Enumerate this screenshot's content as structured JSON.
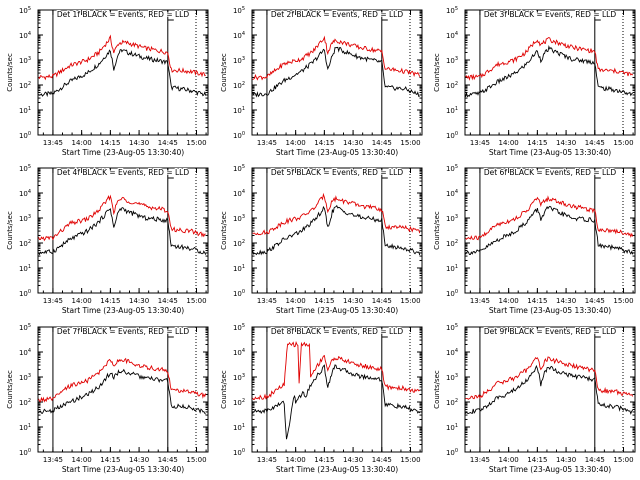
{
  "colors": {
    "events": "#000000",
    "lld": "#e00000",
    "axes": "#000000",
    "background": "#ffffff"
  },
  "chart_data": [
    {
      "type": "line",
      "title": "Det 1f BLACK = Events, RED = LLD",
      "xlabel": "Start Time (23-Aug-05 13:30:40)",
      "ylabel": "Counts/sec",
      "ylog": true,
      "ylim": [
        1,
        100000
      ],
      "yticks": [
        "10^0",
        "10^1",
        "10^2",
        "10^3",
        "10^4",
        "10^5"
      ],
      "xticks": [
        "13:45",
        "14:00",
        "14:15",
        "14:30",
        "14:45",
        "15:00"
      ],
      "xlim": [
        13.62,
        15.1
      ],
      "markers": [
        13.75,
        14.75
      ],
      "series": [
        {
          "name": "Events",
          "x": [
            13.6,
            13.75,
            13.9,
            14.05,
            14.15,
            14.25,
            14.28,
            14.32,
            14.35,
            14.4,
            14.55,
            14.75,
            14.78,
            14.95,
            15.08
          ],
          "values": [
            40,
            45,
            140,
            300,
            700,
            2500,
            450,
            1800,
            2500,
            2000,
            1200,
            800,
            80,
            60,
            40
          ]
        },
        {
          "name": "LLD",
          "x": [
            13.6,
            13.75,
            13.9,
            14.05,
            14.15,
            14.25,
            14.28,
            14.32,
            14.35,
            14.4,
            14.55,
            14.75,
            14.78,
            14.95,
            15.08
          ],
          "values": [
            200,
            220,
            600,
            1000,
            2000,
            7500,
            2000,
            4500,
            5000,
            4800,
            3000,
            2000,
            400,
            350,
            250
          ]
        }
      ]
    },
    {
      "type": "line",
      "title": "Det 2f BLACK = Events, RED = LLD",
      "xlabel": "Start Time (23-Aug-05 13:30:40)",
      "ylabel": "Counts/sec",
      "ylog": true,
      "ylim": [
        1,
        100000
      ],
      "yticks": [
        "10^0",
        "10^1",
        "10^2",
        "10^3",
        "10^4",
        "10^5"
      ],
      "xticks": [
        "13:45",
        "14:00",
        "14:15",
        "14:30",
        "14:45",
        "15:00"
      ],
      "xlim": [
        13.62,
        15.1
      ],
      "markers": [
        13.75,
        14.75
      ],
      "series": [
        {
          "name": "Events",
          "x": [
            13.6,
            13.75,
            13.9,
            14.05,
            14.15,
            14.25,
            14.28,
            14.32,
            14.35,
            14.4,
            14.55,
            14.75,
            14.78,
            14.95,
            15.08
          ],
          "values": [
            40,
            45,
            150,
            350,
            800,
            2600,
            400,
            1500,
            3200,
            2400,
            1300,
            800,
            80,
            70,
            40
          ]
        },
        {
          "name": "LLD",
          "x": [
            13.6,
            13.75,
            13.9,
            14.05,
            14.15,
            14.25,
            14.28,
            14.32,
            14.35,
            14.4,
            14.55,
            14.75,
            14.78,
            14.95,
            15.08
          ],
          "values": [
            200,
            210,
            700,
            1100,
            2200,
            8000,
            2000,
            5000,
            6000,
            5200,
            3200,
            2200,
            450,
            350,
            250
          ]
        }
      ]
    },
    {
      "type": "line",
      "title": "Det 3f BLACK = Events, RED = LLD",
      "xlabel": "Start Time (23-Aug-05 13:30:40)",
      "ylabel": "Counts/sec",
      "ylog": true,
      "ylim": [
        1,
        100000
      ],
      "yticks": [
        "10^0",
        "10^1",
        "10^2",
        "10^3",
        "10^4",
        "10^5"
      ],
      "xticks": [
        "13:45",
        "14:00",
        "14:15",
        "14:30",
        "14:45",
        "15:00"
      ],
      "xlim": [
        13.62,
        15.1
      ],
      "markers": [
        13.75,
        14.75
      ],
      "series": [
        {
          "name": "Events",
          "x": [
            13.6,
            13.75,
            13.9,
            14.05,
            14.15,
            14.25,
            14.28,
            14.32,
            14.35,
            14.4,
            14.55,
            14.75,
            14.78,
            14.95,
            15.08
          ],
          "values": [
            40,
            45,
            130,
            280,
            650,
            2300,
            1000,
            2000,
            2800,
            2200,
            1100,
            800,
            80,
            60,
            40
          ]
        },
        {
          "name": "LLD",
          "x": [
            13.6,
            13.75,
            13.9,
            14.05,
            14.15,
            14.25,
            14.28,
            14.32,
            14.35,
            14.4,
            14.55,
            14.75,
            14.78,
            14.95,
            15.08
          ],
          "values": [
            200,
            210,
            650,
            1000,
            2000,
            7000,
            4000,
            5500,
            6500,
            5500,
            3200,
            2200,
            400,
            350,
            250
          ]
        }
      ]
    },
    {
      "type": "line",
      "title": "Det 4f BLACK = Events, RED = LLD",
      "xlabel": "Start Time (23-Aug-05 13:30:40)",
      "ylabel": "Counts/sec",
      "ylog": true,
      "ylim": [
        1,
        100000
      ],
      "yticks": [
        "10^0",
        "10^1",
        "10^2",
        "10^3",
        "10^4",
        "10^5"
      ],
      "xticks": [
        "13:45",
        "14:00",
        "14:15",
        "14:30",
        "14:45",
        "15:00"
      ],
      "xlim": [
        13.62,
        15.1
      ],
      "markers": [
        13.75,
        14.75
      ],
      "series": [
        {
          "name": "Events",
          "x": [
            13.6,
            13.75,
            13.9,
            14.05,
            14.15,
            14.25,
            14.28,
            14.32,
            14.35,
            14.4,
            14.55,
            14.75,
            14.78,
            14.95,
            15.08
          ],
          "values": [
            40,
            45,
            140,
            300,
            700,
            2500,
            400,
            1800,
            2500,
            1800,
            1000,
            800,
            80,
            60,
            40
          ]
        },
        {
          "name": "LLD",
          "x": [
            13.6,
            13.75,
            13.9,
            14.05,
            14.15,
            14.25,
            14.28,
            14.32,
            14.35,
            14.4,
            14.55,
            14.75,
            14.78,
            14.95,
            15.08
          ],
          "values": [
            150,
            160,
            600,
            900,
            2000,
            7500,
            1800,
            5000,
            6000,
            5000,
            3000,
            2000,
            350,
            300,
            200
          ]
        }
      ]
    },
    {
      "type": "line",
      "title": "Det 5f BLACK = Events, RED = LLD",
      "xlabel": "Start Time (23-Aug-05 13:30:40)",
      "ylabel": "Counts/sec",
      "ylog": true,
      "ylim": [
        1,
        100000
      ],
      "yticks": [
        "10^0",
        "10^1",
        "10^2",
        "10^3",
        "10^4",
        "10^5"
      ],
      "xticks": [
        "13:45",
        "14:00",
        "14:15",
        "14:30",
        "14:45",
        "15:00"
      ],
      "xlim": [
        13.62,
        15.1
      ],
      "markers": [
        13.75,
        14.75
      ],
      "series": [
        {
          "name": "Events",
          "x": [
            13.6,
            13.75,
            13.9,
            14.05,
            14.15,
            14.25,
            14.28,
            14.32,
            14.35,
            14.4,
            14.55,
            14.75,
            14.78,
            14.95,
            15.08
          ],
          "values": [
            40,
            45,
            140,
            300,
            700,
            2500,
            400,
            1800,
            2800,
            2000,
            1100,
            800,
            80,
            60,
            40
          ]
        },
        {
          "name": "LLD",
          "x": [
            13.6,
            13.75,
            13.9,
            14.05,
            14.15,
            14.25,
            14.28,
            14.32,
            14.35,
            14.4,
            14.55,
            14.75,
            14.78,
            14.95,
            15.08
          ],
          "values": [
            250,
            260,
            700,
            1100,
            2200,
            8000,
            2000,
            5000,
            6000,
            5000,
            3200,
            2200,
            450,
            400,
            300
          ]
        }
      ]
    },
    {
      "type": "line",
      "title": "Det 6f BLACK = Events, RED = LLD",
      "xlabel": "Start Time (23-Aug-05 13:30:40)",
      "ylabel": "Counts/sec",
      "ylog": true,
      "ylim": [
        1,
        100000
      ],
      "yticks": [
        "10^0",
        "10^1",
        "10^2",
        "10^3",
        "10^4",
        "10^5"
      ],
      "xticks": [
        "13:45",
        "14:00",
        "14:15",
        "14:30",
        "14:45",
        "15:00"
      ],
      "xlim": [
        13.62,
        15.1
      ],
      "markers": [
        13.75,
        14.75
      ],
      "series": [
        {
          "name": "Events",
          "x": [
            13.6,
            13.75,
            13.9,
            14.05,
            14.15,
            14.25,
            14.28,
            14.32,
            14.35,
            14.4,
            14.55,
            14.75,
            14.78,
            14.95,
            15.08
          ],
          "values": [
            40,
            45,
            130,
            280,
            650,
            2300,
            900,
            2000,
            2600,
            2000,
            1000,
            800,
            80,
            60,
            40
          ]
        },
        {
          "name": "LLD",
          "x": [
            13.6,
            13.75,
            13.9,
            14.05,
            14.15,
            14.25,
            14.28,
            14.32,
            14.35,
            14.4,
            14.55,
            14.75,
            14.78,
            14.95,
            15.08
          ],
          "values": [
            150,
            160,
            550,
            900,
            1800,
            6500,
            3500,
            5000,
            6000,
            5000,
            3000,
            2000,
            350,
            300,
            200
          ]
        }
      ]
    },
    {
      "type": "line",
      "title": "Det 7f BLACK = Events, RED = LLD",
      "xlabel": "Start Time (23-Aug-05 13:30:40)",
      "ylabel": "Counts/sec",
      "ylog": true,
      "ylim": [
        1,
        100000
      ],
      "yticks": [
        "10^0",
        "10^1",
        "10^2",
        "10^3",
        "10^4",
        "10^5"
      ],
      "xticks": [
        "13:45",
        "14:00",
        "14:15",
        "14:30",
        "14:45",
        "15:00"
      ],
      "xlim": [
        13.62,
        15.1
      ],
      "markers": [
        13.75,
        14.75
      ],
      "series": [
        {
          "name": "Events",
          "x": [
            13.6,
            13.75,
            13.9,
            14.05,
            14.15,
            14.25,
            14.28,
            14.32,
            14.35,
            14.4,
            14.55,
            14.75,
            14.78,
            14.95,
            15.08
          ],
          "values": [
            40,
            45,
            100,
            200,
            400,
            1500,
            1000,
            1500,
            1800,
            1500,
            900,
            700,
            70,
            60,
            40
          ]
        },
        {
          "name": "LLD",
          "x": [
            13.6,
            13.75,
            13.9,
            14.05,
            14.15,
            14.25,
            14.28,
            14.32,
            14.35,
            14.4,
            14.55,
            14.75,
            14.78,
            14.95,
            15.08
          ],
          "values": [
            120,
            130,
            450,
            700,
            1500,
            5000,
            3000,
            4500,
            5000,
            4200,
            2500,
            1800,
            300,
            250,
            180
          ]
        }
      ]
    },
    {
      "type": "line",
      "title": "Det 8f BLACK = Events, RED = LLD",
      "xlabel": "Start Time (23-Aug-05 13:30:40)",
      "ylabel": "Counts/sec",
      "ylog": true,
      "ylim": [
        1,
        100000
      ],
      "yticks": [
        "10^0",
        "10^1",
        "10^2",
        "10^3",
        "10^4",
        "10^5"
      ],
      "xticks": [
        "13:45",
        "14:00",
        "14:15",
        "14:30",
        "14:45",
        "15:00"
      ],
      "xlim": [
        13.62,
        15.1
      ],
      "markers": [
        13.75,
        14.75
      ],
      "series": [
        {
          "name": "Events",
          "x": [
            13.6,
            13.75,
            13.9,
            13.92,
            13.99,
            14.0,
            14.07,
            14.08,
            14.15,
            14.25,
            14.28,
            14.32,
            14.35,
            14.4,
            14.55,
            14.75,
            14.78,
            14.95,
            15.08
          ],
          "values": [
            40,
            45,
            100,
            3,
            200,
            100,
            250,
            150,
            700,
            2500,
            400,
            1800,
            2800,
            2000,
            1100,
            800,
            80,
            60,
            40
          ]
        },
        {
          "name": "LLD",
          "x": [
            13.6,
            13.75,
            13.9,
            13.93,
            14.02,
            14.03,
            14.05,
            14.12,
            14.13,
            14.15,
            14.25,
            14.28,
            14.32,
            14.35,
            14.4,
            14.55,
            14.75,
            14.78,
            14.95,
            15.08
          ],
          "values": [
            150,
            160,
            500,
            20000,
            20000,
            600,
            20000,
            20000,
            1000,
            1500,
            7500,
            1800,
            5000,
            6000,
            5000,
            3000,
            2000,
            400,
            350,
            250
          ]
        }
      ]
    },
    {
      "type": "line",
      "title": "Det 9f BLACK = Events, RED = LLD",
      "xlabel": "Start Time (23-Aug-05 13:30:40)",
      "ylabel": "Counts/sec",
      "ylog": true,
      "ylim": [
        1,
        100000
      ],
      "yticks": [
        "10^0",
        "10^1",
        "10^2",
        "10^3",
        "10^4",
        "10^5"
      ],
      "xticks": [
        "13:45",
        "14:00",
        "14:15",
        "14:30",
        "14:45",
        "15:00"
      ],
      "xlim": [
        13.62,
        15.1
      ],
      "markers": [
        13.75,
        14.75
      ],
      "series": [
        {
          "name": "Events",
          "x": [
            13.6,
            13.75,
            13.9,
            14.05,
            14.15,
            14.25,
            14.28,
            14.32,
            14.35,
            14.4,
            14.55,
            14.75,
            14.78,
            14.95,
            15.08
          ],
          "values": [
            40,
            45,
            140,
            300,
            700,
            2500,
            500,
            1800,
            2500,
            1900,
            1100,
            800,
            80,
            60,
            40
          ]
        },
        {
          "name": "LLD",
          "x": [
            13.6,
            13.75,
            13.9,
            14.05,
            14.15,
            14.25,
            14.28,
            14.32,
            14.35,
            14.4,
            14.55,
            14.75,
            14.78,
            14.95,
            15.08
          ],
          "values": [
            150,
            160,
            550,
            900,
            1800,
            6500,
            2000,
            4500,
            5500,
            4500,
            2800,
            1800,
            300,
            250,
            180
          ]
        }
      ]
    }
  ]
}
